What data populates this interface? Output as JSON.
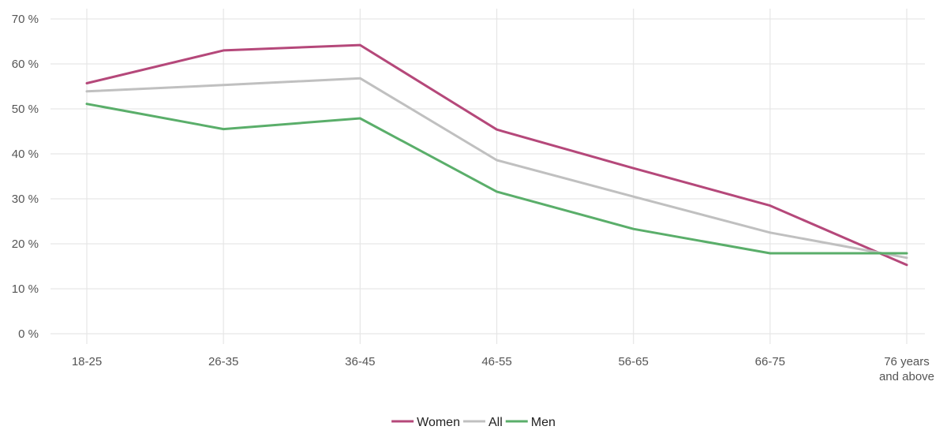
{
  "chart_data": {
    "type": "line",
    "title": "",
    "xlabel": "",
    "ylabel": "",
    "categories": [
      "18-25",
      "26-35",
      "36-45",
      "46-55",
      "56-65",
      "66-75",
      "76 years and above"
    ],
    "ylim": [
      0,
      70
    ],
    "yticks": [
      0,
      10,
      20,
      30,
      40,
      50,
      60,
      70
    ],
    "ytick_labels": [
      "0 %",
      "10 %",
      "20 %",
      "30 %",
      "40 %",
      "50 %",
      "60 %",
      "70 %"
    ],
    "grid": true,
    "legend_position": "bottom",
    "series": [
      {
        "name": "Women",
        "color": "#b5487a",
        "values": [
          55.7,
          63.0,
          64.2,
          45.4,
          36.8,
          28.5,
          15.3
        ]
      },
      {
        "name": "All",
        "color": "#c0c0c0",
        "values": [
          53.9,
          55.3,
          56.8,
          38.6,
          30.5,
          22.5,
          16.9
        ]
      },
      {
        "name": "Men",
        "color": "#5aae6a",
        "values": [
          51.1,
          45.5,
          47.9,
          31.6,
          23.3,
          17.9,
          17.9
        ]
      }
    ]
  }
}
